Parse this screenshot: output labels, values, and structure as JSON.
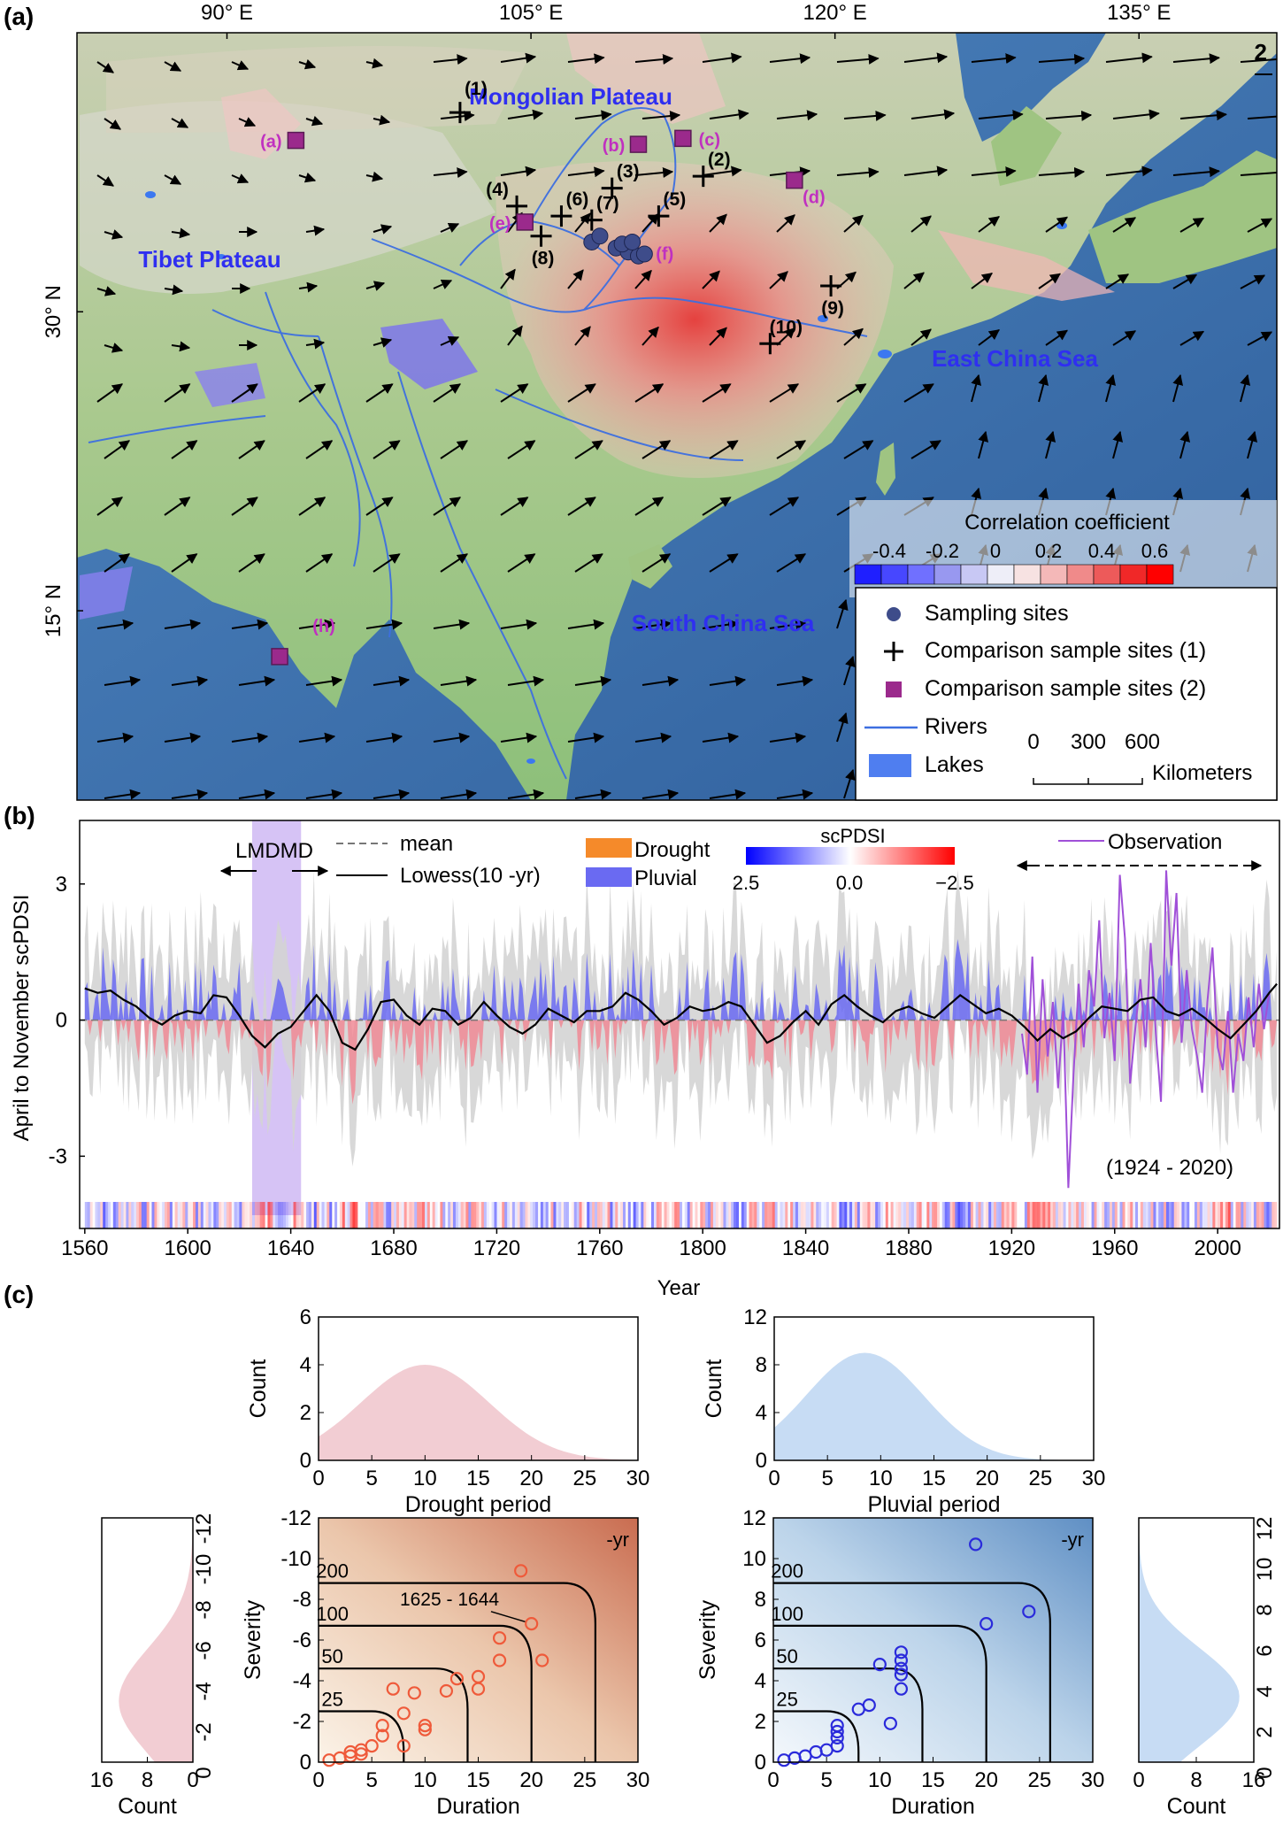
{
  "panel_labels": {
    "a": "(a)",
    "b": "(b)",
    "c": "(c)"
  },
  "chart_data": [
    {
      "type": "map",
      "panel": "(a)",
      "top_ticks": [
        "90° E",
        "105° E",
        "120° E",
        "135° E"
      ],
      "left_ticks": [
        "30° N",
        "15° N"
      ],
      "corner_label": "2",
      "region_labels": [
        "Mongolian Plateau",
        "Tibet Plateau",
        "East China Sea",
        "South China Sea"
      ],
      "plus_sites": [
        {
          "label": "(1)",
          "lon": 101.5,
          "lat": 40.0
        },
        {
          "label": "(2)",
          "lon": 113.5,
          "lat": 36.8
        },
        {
          "label": "(3)",
          "lon": 109.0,
          "lat": 36.2
        },
        {
          "label": "(4)",
          "lon": 104.3,
          "lat": 35.3
        },
        {
          "label": "(5)",
          "lon": 111.3,
          "lat": 34.8
        },
        {
          "label": "(6)",
          "lon": 106.5,
          "lat": 34.8
        },
        {
          "label": "(7)",
          "lon": 108.0,
          "lat": 34.6
        },
        {
          "label": "(8)",
          "lon": 105.5,
          "lat": 33.8
        },
        {
          "label": "(9)",
          "lon": 119.8,
          "lat": 31.3
        },
        {
          "label": "(10)",
          "lon": 116.8,
          "lat": 28.4
        }
      ],
      "square_sites": [
        {
          "label": "(a)",
          "lon": 93.4,
          "lat": 38.6
        },
        {
          "label": "(b)",
          "lon": 110.3,
          "lat": 38.4
        },
        {
          "label": "(c)",
          "lon": 112.5,
          "lat": 38.7
        },
        {
          "label": "(d)",
          "lon": 118.0,
          "lat": 36.6
        },
        {
          "label": "(e)",
          "lon": 104.7,
          "lat": 34.5
        },
        {
          "label": "(h)",
          "lon": 92.6,
          "lat": 12.7
        }
      ],
      "circle_sites_label": "(f)",
      "colorbar": {
        "title": "Correlation coefficient",
        "ticks": [
          "-0.4",
          "-0.2",
          "0",
          "0.2",
          "0.4",
          "0.6"
        ],
        "colors": [
          "#1f1fff",
          "#4747ff",
          "#7070ff",
          "#9898f0",
          "#c8c8f4",
          "#eeeef8",
          "#f7e2e2",
          "#f4b8b8",
          "#f08a8a",
          "#ed5a5a",
          "#f02828",
          "#ff0000"
        ]
      },
      "legend": [
        {
          "symbol": "circle",
          "text": "Sampling sites"
        },
        {
          "symbol": "plus",
          "text": "Comparison sample sites (1)"
        },
        {
          "symbol": "square",
          "text": "Comparison sample sites (2)"
        },
        {
          "symbol": "line",
          "text": "Rivers"
        },
        {
          "symbol": "rect",
          "text": "Lakes"
        }
      ],
      "scalebar": {
        "ticks": [
          "0",
          "300",
          "600"
        ],
        "unit": "Kilometers"
      }
    },
    {
      "type": "line",
      "panel": "(b)",
      "ylabel": "April to November scPDSI",
      "xlabel": "Year",
      "xlim": [
        1558,
        2024
      ],
      "ylim": [
        -4.3,
        4.4
      ],
      "xticks": [
        "1560",
        "1600",
        "1640",
        "1680",
        "1720",
        "1760",
        "1800",
        "1840",
        "1880",
        "1920",
        "1960",
        "2000"
      ],
      "yticks": [
        "3",
        "0",
        "-3"
      ],
      "shaded_period": {
        "label": "LMDMD",
        "start": 1625,
        "end": 1644
      },
      "observation_period": {
        "label": "(1924 - 2020)",
        "start": 1924,
        "end": 2020
      },
      "legend": {
        "mean": "mean",
        "lowess": "Lowess(10 -yr)",
        "drought": "Drought",
        "pluvial": "Pluvial",
        "observation": "Observation"
      },
      "colorbar": {
        "title": "scPDSI",
        "ticks": [
          "2.5",
          "0.0",
          "−2.5"
        ]
      },
      "lowess_points": [
        [
          1560,
          0.7
        ],
        [
          1565,
          0.6
        ],
        [
          1570,
          0.65
        ],
        [
          1575,
          0.45
        ],
        [
          1580,
          0.3
        ],
        [
          1585,
          0.05
        ],
        [
          1590,
          -0.1
        ],
        [
          1595,
          0.1
        ],
        [
          1600,
          0.2
        ],
        [
          1605,
          0.15
        ],
        [
          1610,
          0.55
        ],
        [
          1615,
          0.5
        ],
        [
          1620,
          0.1
        ],
        [
          1625,
          -0.35
        ],
        [
          1630,
          -0.6
        ],
        [
          1635,
          -0.3
        ],
        [
          1640,
          -0.15
        ],
        [
          1645,
          0.2
        ],
        [
          1650,
          0.55
        ],
        [
          1655,
          0.2
        ],
        [
          1660,
          -0.5
        ],
        [
          1665,
          -0.65
        ],
        [
          1670,
          -0.2
        ],
        [
          1675,
          0.4
        ],
        [
          1680,
          0.45
        ],
        [
          1685,
          0.1
        ],
        [
          1690,
          -0.1
        ],
        [
          1695,
          0.25
        ],
        [
          1700,
          0.2
        ],
        [
          1705,
          -0.1
        ],
        [
          1710,
          0.05
        ],
        [
          1715,
          0.4
        ],
        [
          1720,
          0.1
        ],
        [
          1725,
          -0.15
        ],
        [
          1730,
          -0.3
        ],
        [
          1735,
          -0.1
        ],
        [
          1740,
          0.25
        ],
        [
          1745,
          0.1
        ],
        [
          1750,
          -0.05
        ],
        [
          1755,
          0.2
        ],
        [
          1760,
          0.2
        ],
        [
          1765,
          0.3
        ],
        [
          1770,
          0.6
        ],
        [
          1775,
          0.45
        ],
        [
          1780,
          0.2
        ],
        [
          1785,
          -0.1
        ],
        [
          1790,
          0.05
        ],
        [
          1795,
          0.3
        ],
        [
          1800,
          0.2
        ],
        [
          1805,
          0.25
        ],
        [
          1810,
          0.4
        ],
        [
          1815,
          0.3
        ],
        [
          1820,
          -0.1
        ],
        [
          1825,
          -0.5
        ],
        [
          1830,
          -0.35
        ],
        [
          1835,
          -0.05
        ],
        [
          1840,
          0.2
        ],
        [
          1845,
          -0.1
        ],
        [
          1850,
          0.35
        ],
        [
          1855,
          0.55
        ],
        [
          1860,
          0.3
        ],
        [
          1865,
          0.1
        ],
        [
          1870,
          -0.05
        ],
        [
          1875,
          0.2
        ],
        [
          1880,
          0.3
        ],
        [
          1885,
          0.15
        ],
        [
          1890,
          0.05
        ],
        [
          1895,
          0.3
        ],
        [
          1900,
          0.55
        ],
        [
          1905,
          0.35
        ],
        [
          1910,
          0.15
        ],
        [
          1915,
          0.25
        ],
        [
          1920,
          0.1
        ],
        [
          1925,
          -0.15
        ],
        [
          1930,
          -0.45
        ],
        [
          1935,
          -0.2
        ],
        [
          1940,
          -0.4
        ],
        [
          1945,
          -0.25
        ],
        [
          1950,
          0.05
        ],
        [
          1955,
          0.3
        ],
        [
          1960,
          0.25
        ],
        [
          1965,
          0.2
        ],
        [
          1970,
          0.45
        ],
        [
          1975,
          0.5
        ],
        [
          1980,
          0.2
        ],
        [
          1985,
          0.1
        ],
        [
          1990,
          0.25
        ],
        [
          1995,
          0.05
        ],
        [
          2000,
          -0.2
        ],
        [
          2005,
          -0.4
        ],
        [
          2010,
          -0.1
        ],
        [
          2015,
          0.2
        ],
        [
          2020,
          0.6
        ],
        [
          2023,
          0.8
        ]
      ],
      "observation_points": [
        [
          1924,
          -0.3
        ],
        [
          1926,
          -1.2
        ],
        [
          1928,
          1.4
        ],
        [
          1930,
          -1.6
        ],
        [
          1932,
          0.9
        ],
        [
          1934,
          -0.8
        ],
        [
          1936,
          0.4
        ],
        [
          1938,
          -1.5
        ],
        [
          1940,
          0.2
        ],
        [
          1942,
          -3.7
        ],
        [
          1944,
          -1.2
        ],
        [
          1946,
          0.8
        ],
        [
          1948,
          -0.6
        ],
        [
          1950,
          1.1
        ],
        [
          1952,
          0.3
        ],
        [
          1954,
          2.2
        ],
        [
          1956,
          -0.4
        ],
        [
          1958,
          0.6
        ],
        [
          1960,
          -0.9
        ],
        [
          1962,
          3.2
        ],
        [
          1964,
          1.8
        ],
        [
          1966,
          -1.4
        ],
        [
          1968,
          -0.2
        ],
        [
          1970,
          0.9
        ],
        [
          1972,
          -0.6
        ],
        [
          1974,
          1.7
        ],
        [
          1976,
          -0.3
        ],
        [
          1978,
          -1.8
        ],
        [
          1980,
          3.3
        ],
        [
          1982,
          1.2
        ],
        [
          1984,
          2.8
        ],
        [
          1986,
          -0.5
        ],
        [
          1988,
          1.1
        ],
        [
          1990,
          -0.2
        ],
        [
          1992,
          -0.8
        ],
        [
          1994,
          -1.6
        ],
        [
          1996,
          0.4
        ],
        [
          1998,
          1.6
        ],
        [
          2000,
          -0.6
        ],
        [
          2002,
          -1.1
        ],
        [
          2004,
          0.2
        ],
        [
          2006,
          -1.6
        ],
        [
          2008,
          -0.3
        ],
        [
          2010,
          -0.9
        ],
        [
          2012,
          0.5
        ],
        [
          2014,
          -0.6
        ],
        [
          2016,
          0.8
        ],
        [
          2018,
          -0.2
        ],
        [
          2020,
          0.6
        ]
      ]
    },
    {
      "type": "area",
      "title": "Drought period",
      "ylabel": "Count",
      "xlim": [
        0,
        30
      ],
      "ylim": [
        0,
        6
      ],
      "xticks": [
        "0",
        "5",
        "10",
        "15",
        "20",
        "25",
        "30"
      ],
      "yticks": [
        "0",
        "2",
        "4",
        "6"
      ],
      "peak_x": 10,
      "peak_count": 4.0,
      "spread": 6,
      "color": "#f2cdd3"
    },
    {
      "type": "area",
      "title": "Pluvial period",
      "ylabel": "Count",
      "xlim": [
        0,
        30
      ],
      "ylim": [
        0,
        12
      ],
      "xticks": [
        "0",
        "5",
        "10",
        "15",
        "20",
        "25",
        "30"
      ],
      "yticks": [
        "0",
        "4",
        "8",
        "12"
      ],
      "peak_x": 8.5,
      "peak_count": 9.0,
      "spread": 5.5,
      "color": "#c7dcf4"
    },
    {
      "type": "scatter",
      "panel": "drought",
      "xlabel": "Duration",
      "ylabel": "Severity",
      "xlim": [
        0,
        30
      ],
      "ylim": [
        0,
        -12
      ],
      "xticks": [
        "0",
        "5",
        "10",
        "15",
        "20",
        "25",
        "30"
      ],
      "yticks": [
        "0",
        "-2",
        "-4",
        "-6",
        "-8",
        "-10",
        "-12"
      ],
      "corner_label": "-yr",
      "contour_labels": [
        "25",
        "50",
        "100",
        "200"
      ],
      "annotation": "1625 - 1644",
      "points": [
        [
          1,
          -0.1
        ],
        [
          2,
          -0.2
        ],
        [
          3,
          -0.3
        ],
        [
          3,
          -0.5
        ],
        [
          4,
          -0.4
        ],
        [
          4,
          -0.6
        ],
        [
          5,
          -0.8
        ],
        [
          6,
          -1.3
        ],
        [
          8,
          -0.8
        ],
        [
          6,
          -1.8
        ],
        [
          7,
          -3.6
        ],
        [
          8,
          -2.4
        ],
        [
          9,
          -3.4
        ],
        [
          10,
          -1.6
        ],
        [
          10,
          -1.8
        ],
        [
          12,
          -3.5
        ],
        [
          13,
          -4.1
        ],
        [
          15,
          -4.2
        ],
        [
          15,
          -3.6
        ],
        [
          17,
          -5.0
        ],
        [
          17,
          -6.1
        ],
        [
          21,
          -5.0
        ],
        [
          19,
          -9.4
        ],
        [
          20,
          -6.8
        ]
      ]
    },
    {
      "type": "scatter",
      "panel": "pluvial",
      "xlabel": "Duration",
      "ylabel": "Severity",
      "xlim": [
        0,
        30
      ],
      "ylim": [
        0,
        12
      ],
      "xticks": [
        "0",
        "5",
        "10",
        "15",
        "20",
        "25",
        "30"
      ],
      "yticks": [
        "0",
        "2",
        "4",
        "6",
        "8",
        "10",
        "12"
      ],
      "corner_label": "-yr",
      "contour_labels": [
        "25",
        "50",
        "100",
        "200"
      ],
      "points": [
        [
          1,
          0.1
        ],
        [
          2,
          0.2
        ],
        [
          3,
          0.3
        ],
        [
          4,
          0.5
        ],
        [
          5,
          0.6
        ],
        [
          6,
          0.8
        ],
        [
          6,
          1.2
        ],
        [
          6,
          1.5
        ],
        [
          6,
          1.8
        ],
        [
          8,
          2.6
        ],
        [
          9,
          2.8
        ],
        [
          10,
          4.8
        ],
        [
          11,
          1.9
        ],
        [
          12,
          3.6
        ],
        [
          12,
          4.3
        ],
        [
          12,
          4.6
        ],
        [
          12,
          5.0
        ],
        [
          12,
          5.4
        ],
        [
          20,
          6.8
        ],
        [
          24,
          7.4
        ],
        [
          19,
          10.7
        ]
      ]
    },
    {
      "type": "area",
      "panel": "drought-marginal",
      "xlabel": "Count",
      "xticks": [
        "16",
        "8",
        "0"
      ],
      "yticks": [
        "0",
        "-2",
        "-4",
        "-6",
        "-8",
        "-10",
        "-12"
      ],
      "peak_severity": 3.0,
      "peak_count": 13,
      "spread": 2.6,
      "color": "#f2cdd3"
    },
    {
      "type": "area",
      "panel": "pluvial-marginal",
      "xlabel": "Count",
      "xticks": [
        "0",
        "8",
        "16"
      ],
      "yticks": [
        "0",
        "2",
        "4",
        "6",
        "8",
        "10",
        "12"
      ],
      "peak_severity": 3.2,
      "peak_count": 14,
      "spread": 2.4,
      "color": "#c7dcf4"
    }
  ]
}
